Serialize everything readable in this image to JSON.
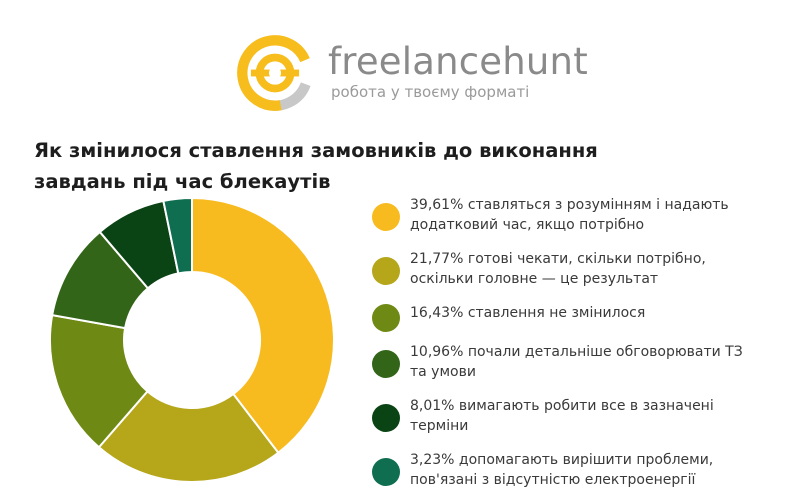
{
  "brand": {
    "name": "freelancehunt",
    "tagline": "робота у твоєму форматі",
    "colors": {
      "yellow": "#f7bd1c",
      "grey": "#c8c8c8",
      "text": "#8a8a8a"
    }
  },
  "title_lines": [
    "Як змінилося ставлення замовників до виконання",
    "завдань під час блекаутів"
  ],
  "chart_data": {
    "type": "pie",
    "variant": "donut",
    "title": "Як змінилося ставлення замовників до виконання завдань під час блекаутів",
    "unit": "%",
    "series": [
      {
        "value": 39.61,
        "color": "#f8bb1f",
        "label_lines": [
          "39,61% ставляться з розумінням і надають",
          "додатковий час, якщо потрібно"
        ]
      },
      {
        "value": 21.77,
        "color": "#b5a61a",
        "label_lines": [
          "21,77% готові чекати, скільки потрібно,",
          "оскільки головне — це результат"
        ]
      },
      {
        "value": 16.43,
        "color": "#6e8a14",
        "label_lines": [
          "16,43% ставлення не змінилося"
        ]
      },
      {
        "value": 10.96,
        "color": "#326518",
        "label_lines": [
          "10,96% почали детальніше обговорювати ТЗ",
          "та умови"
        ]
      },
      {
        "value": 8.01,
        "color": "#0b4414",
        "label_lines": [
          "8,01% вимагають робити все в зазначені",
          "терміни"
        ]
      },
      {
        "value": 3.23,
        "color": "#0f6e50",
        "label_lines": [
          "3,23% допомагають вирішити проблеми,",
          "пов'язані з відсутністю електроенергії"
        ]
      }
    ],
    "legend_position": "right"
  }
}
